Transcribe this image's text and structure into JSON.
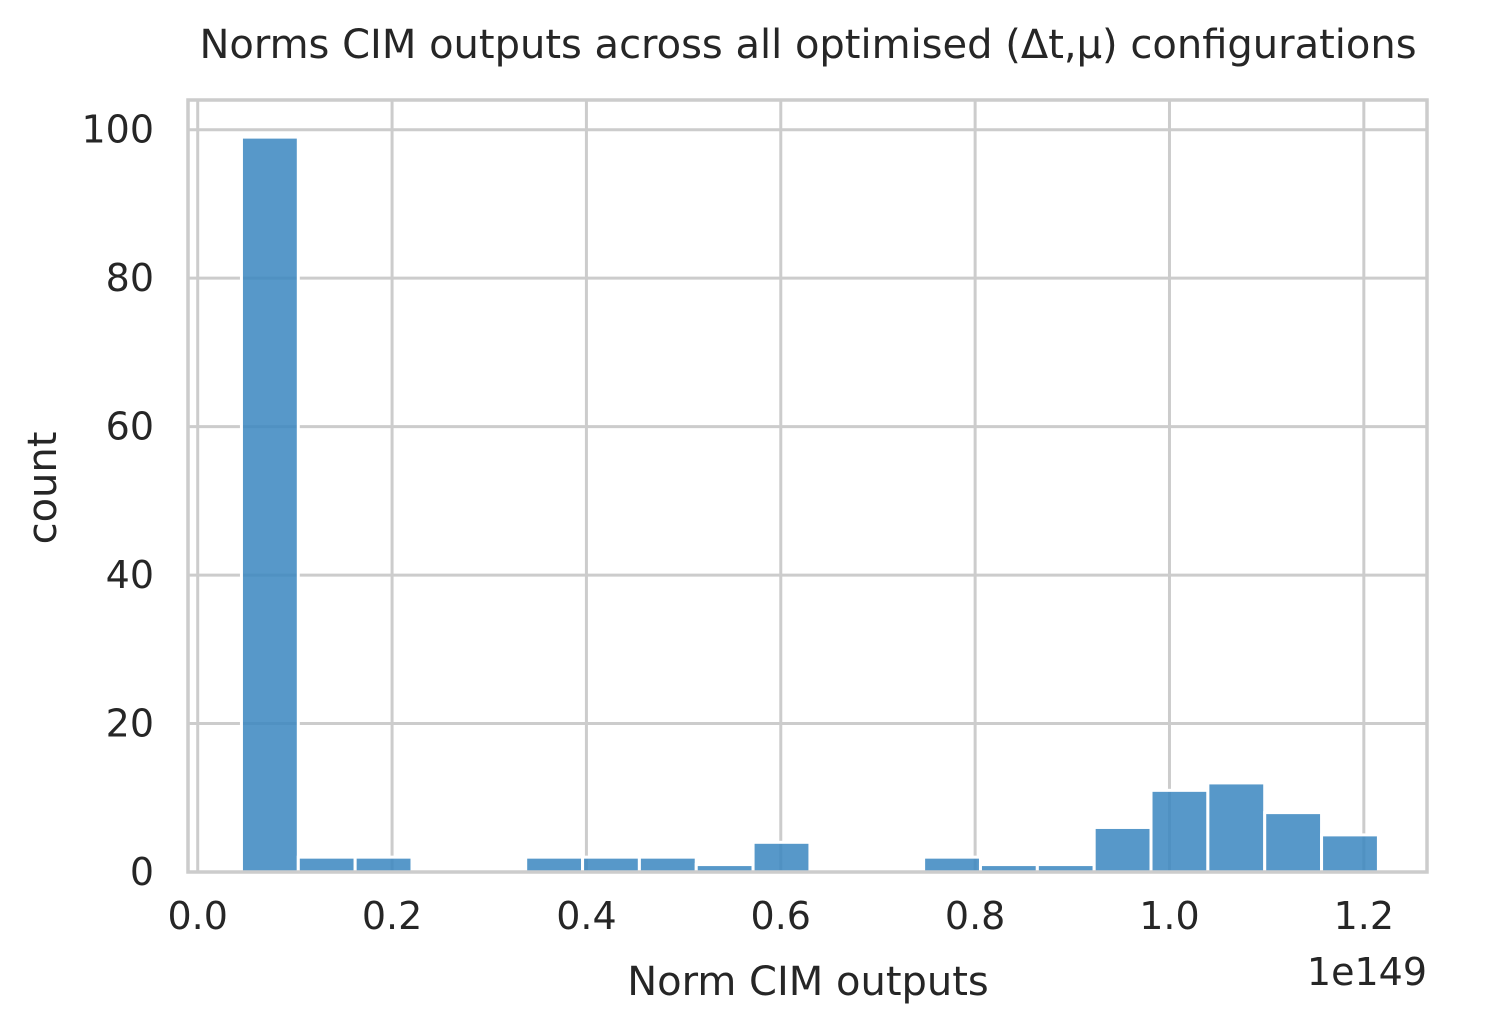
{
  "chart_data": {
    "type": "bar",
    "title": "Norms CIM outputs across all optimised (Δt,μ) configurations",
    "xlabel": "Norm CIM outputs",
    "ylabel": "count",
    "x_offset_label": "1e149",
    "x_scale_exponent": 149,
    "xlim": [
      -0.01,
      1.265
    ],
    "ylim": [
      0,
      104
    ],
    "xticks": [
      0.0,
      0.2,
      0.4,
      0.6,
      0.8,
      1.0,
      1.2
    ],
    "xtick_labels": [
      "0.0",
      "0.2",
      "0.4",
      "0.6",
      "0.8",
      "1.0",
      "1.2"
    ],
    "yticks": [
      0,
      20,
      40,
      60,
      80,
      100
    ],
    "ytick_labels": [
      "0",
      "20",
      "40",
      "60",
      "80",
      "100"
    ],
    "grid": true,
    "bar_color": "#3a86bf",
    "bins": [
      {
        "start": 0.045,
        "end": 0.1035,
        "count": 99
      },
      {
        "start": 0.1035,
        "end": 0.162,
        "count": 2
      },
      {
        "start": 0.162,
        "end": 0.2205,
        "count": 2
      },
      {
        "start": 0.2205,
        "end": 0.279,
        "count": 0
      },
      {
        "start": 0.279,
        "end": 0.3375,
        "count": 0
      },
      {
        "start": 0.3375,
        "end": 0.396,
        "count": 2
      },
      {
        "start": 0.396,
        "end": 0.4545,
        "count": 2
      },
      {
        "start": 0.4545,
        "end": 0.513,
        "count": 2
      },
      {
        "start": 0.513,
        "end": 0.5715,
        "count": 1
      },
      {
        "start": 0.5715,
        "end": 0.63,
        "count": 4
      },
      {
        "start": 0.63,
        "end": 0.6885,
        "count": 0
      },
      {
        "start": 0.6885,
        "end": 0.747,
        "count": 0
      },
      {
        "start": 0.747,
        "end": 0.8055,
        "count": 2
      },
      {
        "start": 0.8055,
        "end": 0.864,
        "count": 1
      },
      {
        "start": 0.864,
        "end": 0.9225,
        "count": 1
      },
      {
        "start": 0.9225,
        "end": 0.981,
        "count": 6
      },
      {
        "start": 0.981,
        "end": 1.0395,
        "count": 11
      },
      {
        "start": 1.0395,
        "end": 1.098,
        "count": 12
      },
      {
        "start": 1.098,
        "end": 1.1565,
        "count": 8
      },
      {
        "start": 1.1565,
        "end": 1.215,
        "count": 5
      }
    ]
  }
}
